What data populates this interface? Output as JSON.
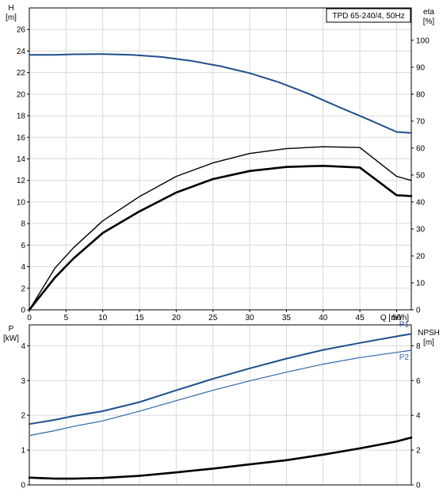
{
  "chart_data": [
    {
      "type": "line",
      "title": "TPD 65-240/4, 50Hz",
      "xlabel": "Q [m³/h]",
      "ylabel_left": [
        "H",
        "[m]"
      ],
      "ylabel_right": [
        "eta",
        "[%]"
      ],
      "xlim": [
        0,
        52
      ],
      "ylim_left": [
        0,
        28
      ],
      "ylim_right": [
        0,
        112
      ],
      "x_ticks": [
        "0",
        "5",
        "10",
        "15",
        "20",
        "25",
        "30",
        "35",
        "40",
        "45",
        "50"
      ],
      "y_left_ticks": [
        "0",
        "2",
        "4",
        "6",
        "8",
        "10",
        "12",
        "14",
        "16",
        "18",
        "20",
        "22",
        "24",
        "26"
      ],
      "y_right_ticks": [
        "0",
        "10",
        "20",
        "30",
        "40",
        "50",
        "60",
        "70",
        "80",
        "90",
        "100"
      ],
      "grid": true,
      "series": [
        {
          "axis": "left",
          "color": "#1f4e8c",
          "width": 2,
          "x": [
            0,
            3.5,
            6,
            10,
            14,
            18,
            22,
            26,
            30,
            34,
            38,
            42,
            46,
            50,
            52
          ],
          "y": [
            23.65,
            23.65,
            23.7,
            23.72,
            23.65,
            23.45,
            23.1,
            22.6,
            21.95,
            21.1,
            20.05,
            18.85,
            17.7,
            16.5,
            16.4
          ],
          "values": [
            23.65,
            23.65,
            23.7,
            23.72,
            23.65,
            23.45,
            23.1,
            22.6,
            21.95,
            21.1,
            20.05,
            18.85,
            17.7,
            16.5,
            16.4
          ]
        },
        {
          "axis": "right",
          "color": "#000000",
          "width": 1.4,
          "x": [
            0,
            3.5,
            6,
            10,
            15,
            20,
            25,
            30,
            35,
            40,
            45,
            50,
            52
          ],
          "y": [
            0,
            15.5,
            23,
            33,
            42,
            49.5,
            54.5,
            58,
            59.8,
            60.5,
            60.2,
            49.5,
            48
          ],
          "values": [
            0,
            15.5,
            23,
            33,
            42,
            49.5,
            54.5,
            58,
            59.8,
            60.5,
            60.2,
            49.5,
            48
          ]
        },
        {
          "axis": "right",
          "color": "#000000",
          "width": 2.6,
          "x": [
            0,
            3.5,
            6,
            10,
            15,
            20,
            25,
            30,
            35,
            40,
            45,
            50,
            52
          ],
          "y": [
            0,
            12,
            19,
            28.5,
            36.5,
            43.5,
            48.5,
            51.5,
            53,
            53.4,
            52.8,
            42.5,
            42.2
          ],
          "values": [
            0,
            12,
            19,
            28.5,
            36.5,
            43.5,
            48.5,
            51.5,
            53,
            53.4,
            52.8,
            42.5,
            42.2
          ]
        }
      ]
    },
    {
      "type": "line",
      "xlim": [
        0,
        52
      ],
      "ylabel_left": [
        "P",
        "[kW]"
      ],
      "ylabel_right": [
        "NPSH",
        "[m]"
      ],
      "ylim_left": [
        0,
        4.6
      ],
      "ylim_right": [
        0,
        9.2
      ],
      "y_left_ticks": [
        "0",
        "1",
        "2",
        "3",
        "4"
      ],
      "y_right_ticks": [
        "0",
        "2",
        "4",
        "6",
        "8"
      ],
      "grid": true,
      "series": [
        {
          "name": "P1",
          "axis": "left",
          "color": "#1f4e8c",
          "width": 2,
          "x": [
            0,
            3.5,
            6,
            10,
            15,
            20,
            25,
            30,
            35,
            40,
            45,
            50,
            52
          ],
          "y": [
            1.75,
            1.87,
            1.98,
            2.12,
            2.38,
            2.72,
            3.05,
            3.35,
            3.63,
            3.88,
            4.08,
            4.27,
            4.34
          ],
          "values": [
            1.75,
            1.87,
            1.98,
            2.12,
            2.38,
            2.72,
            3.05,
            3.35,
            3.63,
            3.88,
            4.08,
            4.27,
            4.34
          ]
        },
        {
          "name": "P2",
          "axis": "left",
          "color": "#2f66a8",
          "width": 1.2,
          "x": [
            0,
            3.5,
            6,
            10,
            15,
            20,
            25,
            30,
            35,
            40,
            45,
            50,
            52
          ],
          "y": [
            1.42,
            1.56,
            1.68,
            1.84,
            2.12,
            2.42,
            2.72,
            2.99,
            3.24,
            3.47,
            3.66,
            3.81,
            3.87
          ],
          "values": [
            1.42,
            1.56,
            1.68,
            1.84,
            2.12,
            2.42,
            2.72,
            2.99,
            3.24,
            3.47,
            3.66,
            3.81,
            3.87
          ]
        },
        {
          "axis": "right",
          "color": "#000000",
          "width": 2.6,
          "x": [
            0,
            3.5,
            6,
            10,
            15,
            20,
            25,
            30,
            35,
            40,
            45,
            50,
            52
          ],
          "y": [
            0.42,
            0.36,
            0.36,
            0.4,
            0.52,
            0.72,
            0.94,
            1.18,
            1.42,
            1.74,
            2.1,
            2.5,
            2.72
          ],
          "values": [
            0.42,
            0.36,
            0.36,
            0.4,
            0.52,
            0.72,
            0.94,
            1.18,
            1.42,
            1.74,
            2.1,
            2.5,
            2.72
          ]
        }
      ]
    }
  ]
}
